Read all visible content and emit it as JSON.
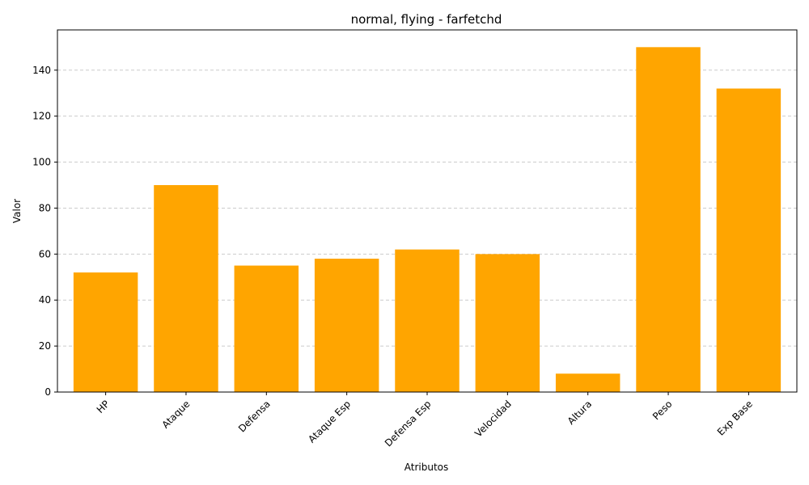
{
  "chart_data": {
    "type": "bar",
    "title": "normal, flying - farfetchd",
    "xlabel": "Atributos",
    "ylabel": "Valor",
    "categories": [
      "HP",
      "Ataque",
      "Defensa",
      "Ataque Esp",
      "Defensa Esp",
      "Velocidad",
      "Altura",
      "Peso",
      "Exp Base"
    ],
    "values": [
      52,
      90,
      55,
      58,
      62,
      60,
      8,
      150,
      132
    ],
    "ylim": [
      0,
      157.5
    ],
    "yticks": [
      0,
      20,
      40,
      60,
      80,
      100,
      120,
      140
    ],
    "bar_color": "#ffa500",
    "grid": {
      "axis": "y",
      "style": "dashed",
      "color": "#cccccc"
    },
    "x_tick_rotation_deg": 45
  }
}
